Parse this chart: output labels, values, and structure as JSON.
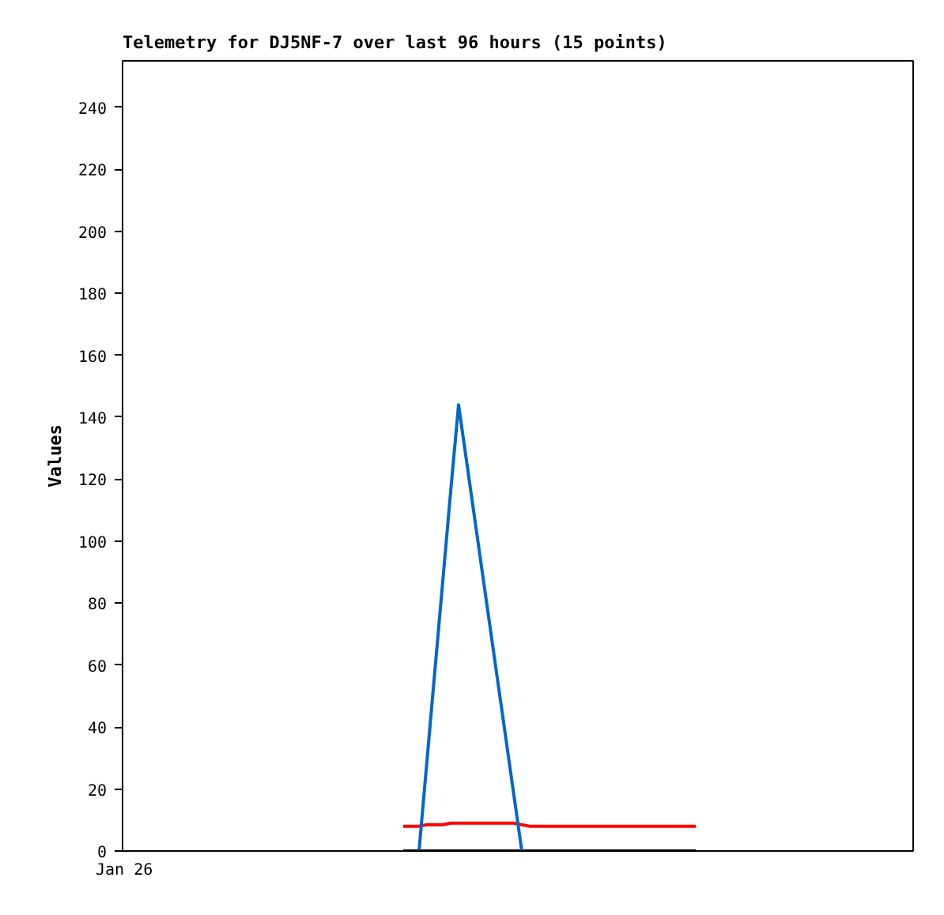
{
  "chart_data": {
    "type": "line",
    "title": "Telemetry for DJ5NF-7 over last 96 hours (15 points)",
    "ylabel": "Values",
    "annotations": [
      "Jan 26"
    ],
    "categories": [
      null,
      null,
      null,
      null,
      null,
      null,
      null,
      null,
      null,
      null,
      null,
      null,
      null,
      null,
      null,
      null,
      null,
      null,
      null,
      null,
      null,
      null,
      null,
      null,
      null,
      null,
      null,
      null,
      null,
      null,
      null,
      null,
      null,
      null,
      null,
      null,
      null,
      null,
      null,
      null,
      null,
      null,
      null,
      null,
      null,
      null,
      null,
      null,
      null,
      null,
      null,
      null,
      null,
      null,
      null,
      null,
      null,
      null,
      null,
      null,
      null,
      null,
      null,
      null,
      null,
      null,
      null,
      null,
      null,
      null,
      null,
      null,
      null,
      null,
      null,
      null,
      null,
      null,
      null,
      null,
      null,
      null,
      null,
      null,
      null,
      null,
      null,
      null,
      null,
      null,
      null,
      null,
      null,
      null,
      null,
      null,
      null,
      null,
      null,
      null
    ],
    "ylim": [
      0,
      255
    ],
    "yticks": [
      0,
      20,
      40,
      60,
      80,
      100,
      120,
      140,
      160,
      180,
      200,
      220,
      240
    ],
    "grid": false,
    "marker": "none",
    "line_style": "solid",
    "series": [
      {
        "color": "#000000",
        "values": [
          null,
          null,
          null,
          null,
          null,
          null,
          null,
          null,
          null,
          null,
          null,
          null,
          null,
          null,
          null,
          null,
          null,
          null,
          null,
          null,
          null,
          null,
          null,
          null,
          null,
          null,
          null,
          null,
          null,
          null,
          null,
          null,
          null,
          null,
          null,
          0,
          0,
          0,
          0,
          0,
          0,
          0,
          0,
          0,
          0,
          0,
          0,
          0,
          0,
          0,
          0,
          0,
          0,
          0,
          0,
          0,
          0,
          0,
          0,
          0,
          0,
          0,
          0,
          0,
          0,
          0,
          0,
          0,
          0,
          0,
          0,
          0,
          0,
          null,
          null,
          null,
          null,
          null,
          null,
          null,
          null,
          null,
          null,
          null,
          null,
          null,
          null,
          null,
          null,
          null,
          null,
          null,
          null,
          null,
          null,
          null,
          null,
          null,
          null,
          null
        ]
      },
      {
        "color": "#ff0000",
        "values": [
          null,
          null,
          null,
          null,
          null,
          null,
          null,
          null,
          null,
          null,
          null,
          null,
          null,
          null,
          null,
          null,
          null,
          null,
          null,
          null,
          null,
          null,
          null,
          null,
          null,
          null,
          null,
          null,
          null,
          null,
          null,
          null,
          null,
          null,
          null,
          8,
          8,
          8,
          8.5,
          8.5,
          8.5,
          9,
          9,
          9,
          9,
          9,
          9,
          9,
          9,
          9,
          8.5,
          8,
          8,
          8,
          8,
          8,
          8,
          8,
          8,
          8,
          8,
          8,
          8,
          8,
          8,
          8,
          8,
          8,
          8,
          8,
          8,
          8,
          8,
          null,
          null,
          null,
          null,
          null,
          null,
          null,
          null,
          null,
          null,
          null,
          null,
          null,
          null,
          null,
          null,
          null,
          null,
          null,
          null,
          null,
          null,
          null,
          null,
          null,
          null,
          null
        ]
      },
      {
        "color": "#0066cc",
        "values": [
          null,
          null,
          null,
          null,
          null,
          null,
          null,
          null,
          null,
          null,
          null,
          null,
          null,
          null,
          null,
          null,
          null,
          null,
          null,
          null,
          null,
          null,
          null,
          null,
          null,
          null,
          null,
          null,
          null,
          null,
          null,
          null,
          null,
          null,
          null,
          null,
          null,
          0,
          29,
          58,
          87,
          116,
          144,
          126,
          108,
          90,
          72,
          54,
          36,
          18,
          0,
          null,
          null,
          null,
          null,
          null,
          null,
          null,
          null,
          null,
          null,
          null,
          null,
          null,
          null,
          null,
          null,
          null,
          null,
          null,
          null,
          null,
          null,
          null,
          null,
          null,
          null,
          null,
          null,
          null,
          null,
          null,
          null,
          null,
          null,
          null,
          null,
          null,
          null,
          null,
          null,
          null,
          null,
          null,
          null,
          null,
          null,
          null,
          null,
          null
        ]
      }
    ]
  }
}
